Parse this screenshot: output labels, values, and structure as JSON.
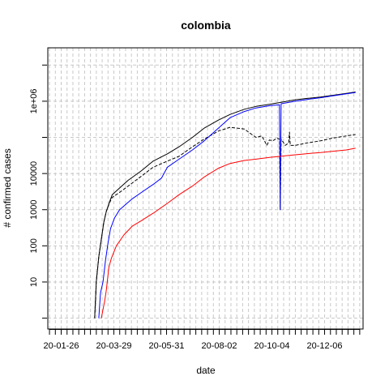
{
  "chart_data": {
    "type": "line",
    "title": "colombia",
    "xlabel": "date",
    "ylabel": "# confirmed cases",
    "y_scale": "log10",
    "ylim": [
      0.5,
      30000000
    ],
    "xlim": [
      "2020-01-10",
      "2021-01-21"
    ],
    "grid": true,
    "legend": "none",
    "x_tick_labels": [
      {
        "date": "2020-01-26",
        "label": "20-01-26"
      },
      {
        "date": "2020-03-29",
        "label": "20-03-29"
      },
      {
        "date": "2020-05-31",
        "label": "20-05-31"
      },
      {
        "date": "2020-08-02",
        "label": "20-08-02"
      },
      {
        "date": "2020-10-04",
        "label": "20-10-04"
      },
      {
        "date": "2020-12-06",
        "label": "20-12-06"
      }
    ],
    "y_tick_labels": [
      {
        "value": 10,
        "label": "10"
      },
      {
        "value": 100,
        "label": "100"
      },
      {
        "value": 1000,
        "label": "1000"
      },
      {
        "value": 10000,
        "label": "10000"
      },
      {
        "value": 1000000,
        "label": "1e+06"
      }
    ],
    "series": [
      {
        "color": "#000000",
        "style": "solid",
        "points": [
          [
            "2020-03-06",
            1
          ],
          [
            "2020-03-08",
            10
          ],
          [
            "2020-03-11",
            50
          ],
          [
            "2020-03-14",
            150
          ],
          [
            "2020-03-17",
            450
          ],
          [
            "2020-03-20",
            900
          ],
          [
            "2020-03-24",
            1700
          ],
          [
            "2020-03-27",
            2600
          ],
          [
            "2020-04-05",
            4000
          ],
          [
            "2020-04-15",
            6500
          ],
          [
            "2020-05-01",
            12000
          ],
          [
            "2020-05-15",
            22000
          ],
          [
            "2020-06-01",
            35000
          ],
          [
            "2020-06-15",
            55000
          ],
          [
            "2020-07-01",
            100000
          ],
          [
            "2020-07-15",
            180000
          ],
          [
            "2020-08-01",
            300000
          ],
          [
            "2020-08-15",
            430000
          ],
          [
            "2020-09-01",
            600000
          ],
          [
            "2020-09-15",
            720000
          ],
          [
            "2020-10-01",
            820000
          ],
          [
            "2020-10-15",
            930000
          ],
          [
            "2020-11-01",
            1100000
          ],
          [
            "2020-11-15",
            1200000
          ],
          [
            "2020-12-01",
            1300000
          ],
          [
            "2020-12-15",
            1450000
          ],
          [
            "2021-01-01",
            1650000
          ],
          [
            "2021-01-12",
            1800000
          ]
        ]
      },
      {
        "color": "#000000",
        "style": "dashed",
        "points": [
          [
            "2020-03-06",
            1
          ],
          [
            "2020-03-08",
            10
          ],
          [
            "2020-03-11",
            50
          ],
          [
            "2020-03-14",
            150
          ],
          [
            "2020-03-17",
            450
          ],
          [
            "2020-03-20",
            900
          ],
          [
            "2020-03-24",
            1600
          ],
          [
            "2020-03-27",
            2200
          ],
          [
            "2020-04-05",
            3000
          ],
          [
            "2020-04-15",
            4500
          ],
          [
            "2020-05-01",
            8500
          ],
          [
            "2020-05-15",
            15000
          ],
          [
            "2020-06-01",
            22000
          ],
          [
            "2020-06-15",
            30000
          ],
          [
            "2020-07-01",
            55000
          ],
          [
            "2020-07-15",
            90000
          ],
          [
            "2020-08-01",
            150000
          ],
          [
            "2020-08-15",
            190000
          ],
          [
            "2020-09-01",
            170000
          ],
          [
            "2020-09-10",
            120000
          ],
          [
            "2020-09-15",
            100000
          ],
          [
            "2020-09-22",
            110000
          ],
          [
            "2020-09-28",
            60000
          ],
          [
            "2020-10-01",
            85000
          ],
          [
            "2020-10-05",
            80000
          ],
          [
            "2020-10-10",
            95000
          ],
          [
            "2020-10-13",
            90000
          ],
          [
            "2020-10-14",
            1000
          ],
          [
            "2020-10-15",
            90000
          ],
          [
            "2020-10-20",
            60000
          ],
          [
            "2020-10-24",
            70000
          ],
          [
            "2020-10-25",
            140000
          ],
          [
            "2020-10-26",
            60000
          ],
          [
            "2020-11-01",
            60000
          ],
          [
            "2020-11-15",
            70000
          ],
          [
            "2020-12-01",
            80000
          ],
          [
            "2020-12-15",
            95000
          ],
          [
            "2021-01-01",
            110000
          ],
          [
            "2021-01-12",
            120000
          ]
        ]
      },
      {
        "color": "#0000ff",
        "style": "solid",
        "points": [
          [
            "2020-03-11",
            1
          ],
          [
            "2020-03-13",
            5
          ],
          [
            "2020-03-16",
            10
          ],
          [
            "2020-03-19",
            40
          ],
          [
            "2020-03-22",
            120
          ],
          [
            "2020-03-25",
            300
          ],
          [
            "2020-03-30",
            600
          ],
          [
            "2020-04-05",
            1000
          ],
          [
            "2020-04-20",
            2000
          ],
          [
            "2020-05-01",
            3000
          ],
          [
            "2020-05-15",
            5000
          ],
          [
            "2020-05-25",
            7500
          ],
          [
            "2020-06-01",
            15000
          ],
          [
            "2020-06-15",
            25000
          ],
          [
            "2020-07-01",
            45000
          ],
          [
            "2020-07-15",
            80000
          ],
          [
            "2020-08-01",
            180000
          ],
          [
            "2020-08-15",
            350000
          ],
          [
            "2020-09-01",
            520000
          ],
          [
            "2020-09-15",
            650000
          ],
          [
            "2020-10-01",
            750000
          ],
          [
            "2020-10-13",
            800000
          ],
          [
            "2020-10-14",
            1000
          ],
          [
            "2020-10-15",
            850000
          ],
          [
            "2020-11-01",
            1000000
          ],
          [
            "2020-11-15",
            1120000
          ],
          [
            "2020-12-01",
            1250000
          ],
          [
            "2020-12-15",
            1400000
          ],
          [
            "2021-01-01",
            1600000
          ],
          [
            "2021-01-12",
            1750000
          ]
        ]
      },
      {
        "color": "#ff0000",
        "style": "solid",
        "points": [
          [
            "2020-03-14",
            1
          ],
          [
            "2020-03-18",
            3
          ],
          [
            "2020-03-20",
            6
          ],
          [
            "2020-03-23",
            25
          ],
          [
            "2020-03-26",
            45
          ],
          [
            "2020-04-01",
            100
          ],
          [
            "2020-04-10",
            200
          ],
          [
            "2020-04-20",
            350
          ],
          [
            "2020-05-01",
            500
          ],
          [
            "2020-05-15",
            800
          ],
          [
            "2020-06-01",
            1500
          ],
          [
            "2020-06-15",
            2600
          ],
          [
            "2020-07-01",
            4500
          ],
          [
            "2020-07-15",
            8000
          ],
          [
            "2020-08-01",
            14000
          ],
          [
            "2020-08-15",
            19000
          ],
          [
            "2020-09-01",
            23000
          ],
          [
            "2020-09-15",
            25000
          ],
          [
            "2020-10-01",
            28000
          ],
          [
            "2020-10-15",
            30000
          ],
          [
            "2020-11-01",
            33000
          ],
          [
            "2020-11-15",
            35500
          ],
          [
            "2020-12-01",
            38000
          ],
          [
            "2020-12-15",
            41000
          ],
          [
            "2021-01-01",
            45000
          ],
          [
            "2021-01-12",
            50000
          ]
        ]
      }
    ]
  }
}
